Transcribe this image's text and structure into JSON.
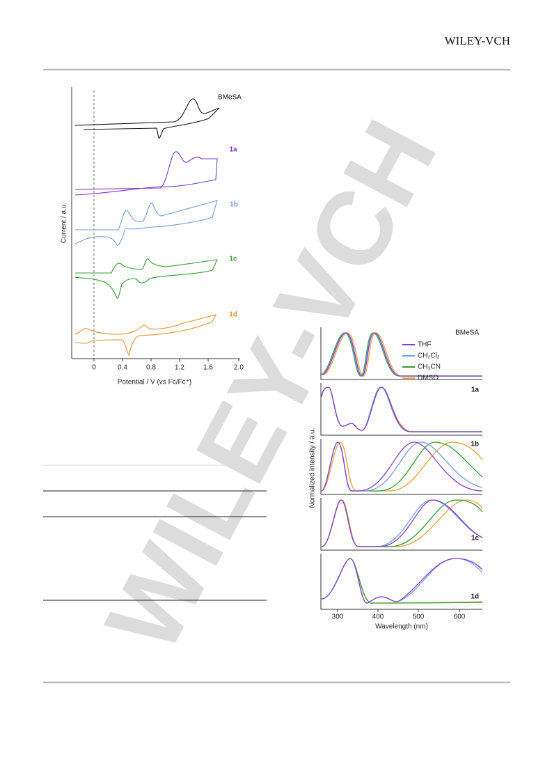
{
  "header": {
    "brand": "WILEY-VCH"
  },
  "watermark": "WILEY-VCH",
  "figure1": {
    "series_labels": [
      "BMeSA",
      "1a",
      "1b",
      "1c",
      "1d"
    ],
    "x_ticks": [
      "0",
      "0.4",
      "0.8",
      "1.2",
      "1.6",
      "2.0"
    ],
    "x_axis_title": "Potential / V (vs Fc/Fc⁺)",
    "y_axis_title": "Current / a.u."
  },
  "figure2": {
    "panel_labels": [
      "BMeSA",
      "1a",
      "1b",
      "1c",
      "1d"
    ],
    "legend": [
      "THF",
      "CH₂Cl₂",
      "CH₃CN",
      "DMSO"
    ],
    "x_ticks": [
      "300",
      "400",
      "500",
      "600"
    ],
    "x_axis_title": "Wavelength (nm)",
    "y_axis_title": "Normalized intensity / a.u."
  }
}
